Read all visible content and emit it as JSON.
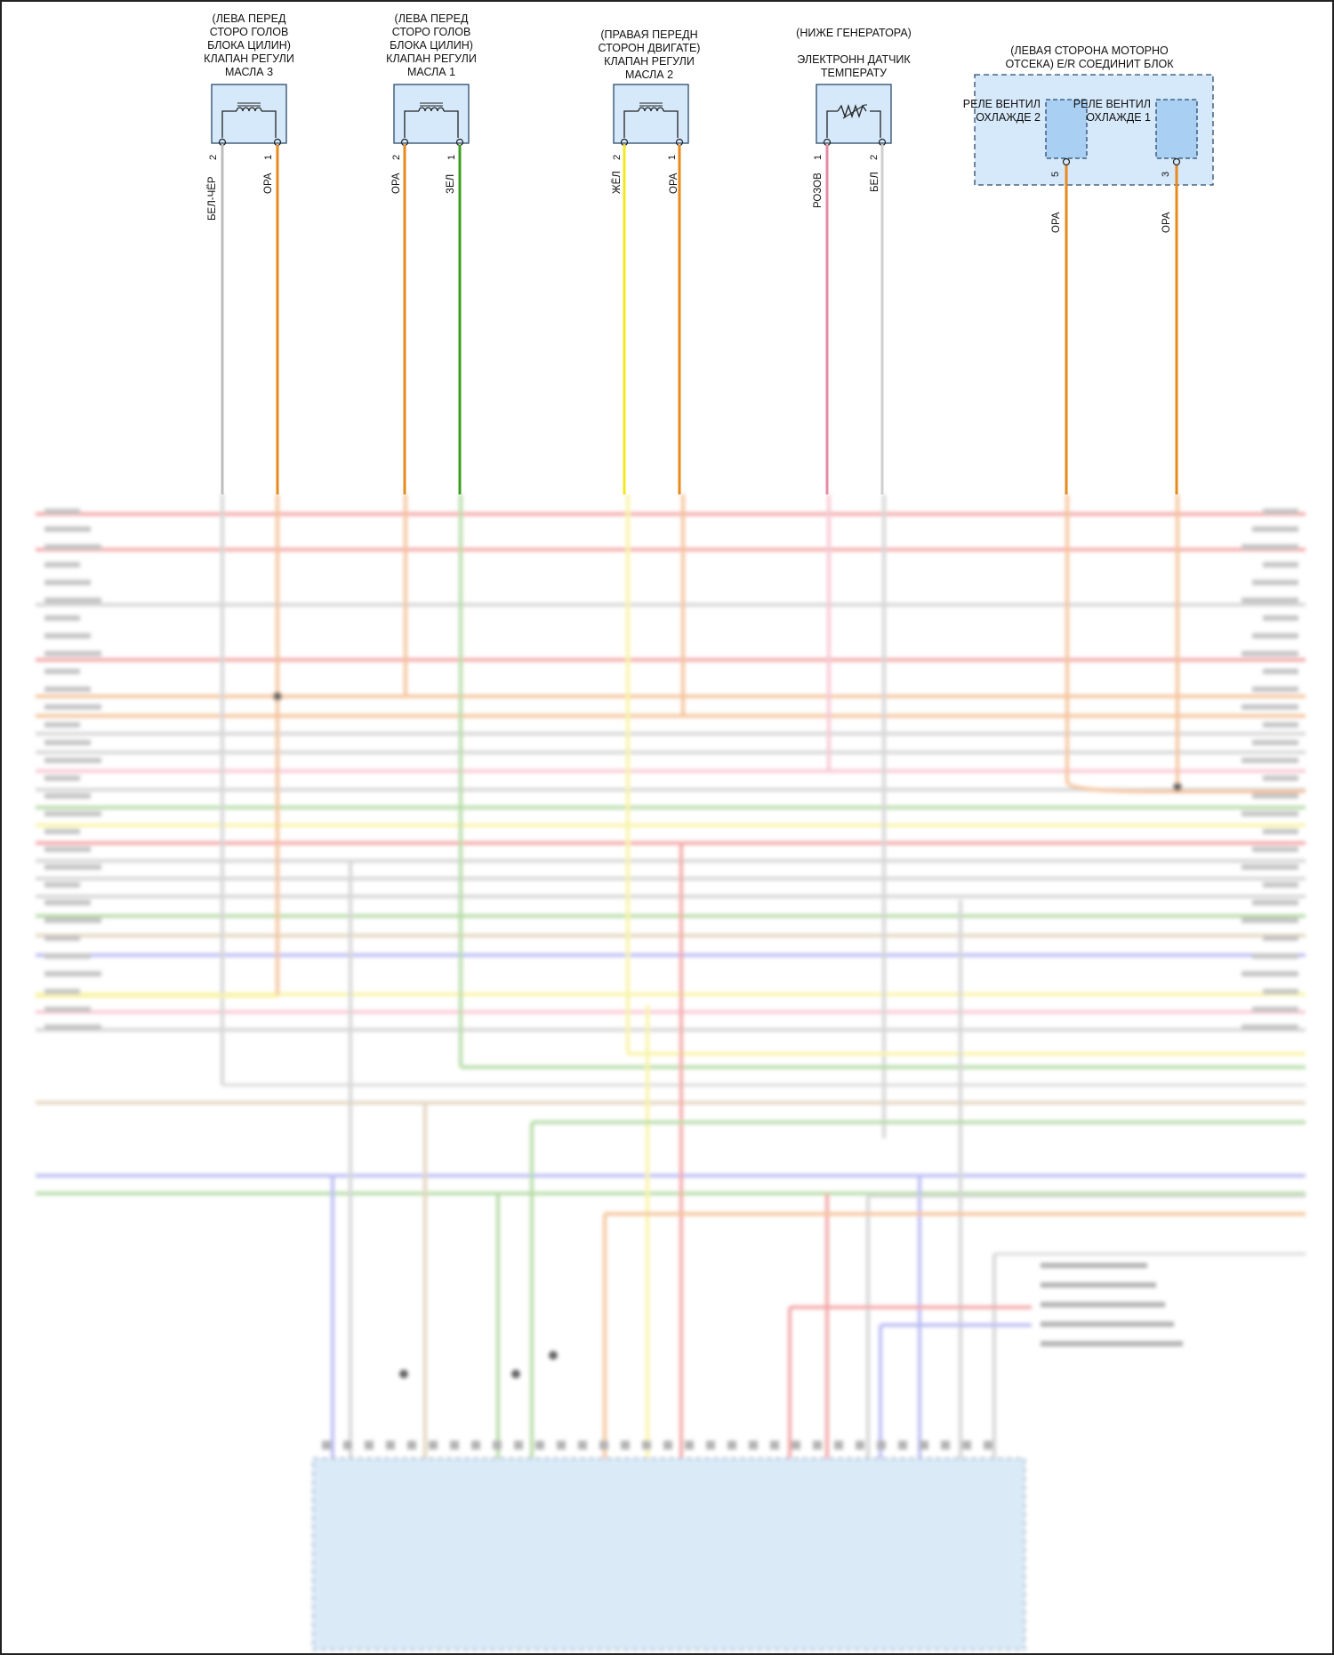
{
  "components": [
    {
      "id": "ocv3",
      "lines": [
        "(ЛЕВА ПЕРЕД",
        "СТОРО ГОЛОВ",
        "БЛОКА ЦИЛИН)",
        "КЛАПАН РЕГУЛИ",
        "МАСЛА 3"
      ]
    },
    {
      "id": "ocv1",
      "lines": [
        "(ЛЕВА ПЕРЕД",
        "СТОРО ГОЛОВ",
        "БЛОКА ЦИЛИН)",
        "КЛАПАН РЕГУЛИ",
        "МАСЛА 1"
      ]
    },
    {
      "id": "ocv2",
      "lines": [
        "(ПРАВАЯ ПЕРЕДН",
        "СТОРОН ДВИГАТЕ)",
        "КЛАПАН РЕГУЛИ",
        "МАСЛА 2"
      ]
    },
    {
      "id": "temp",
      "lines": [
        "(НИЖЕ ГЕНЕРАТОРА)",
        "",
        "ЭЛЕКТРОНН ДАТЧИК",
        "ТЕМПЕРАТУ"
      ]
    },
    {
      "id": "erbox",
      "lines": [
        "(ЛЕВАЯ СТОРОНА МОТОРНО",
        "ОТСЕКА) E/R СОЕДИНИТ БЛОК"
      ]
    }
  ],
  "relays": {
    "relay2": [
      "РЕЛЕ ВЕНТИЛ",
      "ОХЛАЖДЕ 2"
    ],
    "relay1": [
      "РЕЛЕ ВЕНТИЛ",
      "ОХЛАЖДЕ 1"
    ]
  },
  "wires": [
    {
      "id": "w1",
      "pin": "2",
      "label": "БЕЛ-ЧЁР",
      "color": "#bdbdbd"
    },
    {
      "id": "w2",
      "pin": "1",
      "label": "ОРА",
      "color": "#e8891a"
    },
    {
      "id": "w3",
      "pin": "2",
      "label": "ОРА",
      "color": "#e8891a"
    },
    {
      "id": "w4",
      "pin": "1",
      "label": "ЗЕЛ",
      "color": "#3aa11e"
    },
    {
      "id": "w5",
      "pin": "2",
      "label": "ЖЁЛ",
      "color": "#f2e81c"
    },
    {
      "id": "w6",
      "pin": "1",
      "label": "ОРА",
      "color": "#e8891a"
    },
    {
      "id": "w7",
      "pin": "1",
      "label": "РОЗОВ",
      "color": "#e88aa6"
    },
    {
      "id": "w8",
      "pin": "2",
      "label": "БЕЛ",
      "color": "#cfcfcf"
    },
    {
      "id": "w9",
      "pin": "5",
      "label": "ОРА",
      "color": "#e8891a"
    },
    {
      "id": "w10",
      "pin": "3",
      "label": "ОРА",
      "color": "#e8891a"
    }
  ],
  "colors": {
    "red": "#f08a8a",
    "orange": "#f2b07a",
    "gray": "#c8c8c8",
    "pink": "#f4b8c8",
    "green": "#9ed08a",
    "yellow": "#f7f08a",
    "tan": "#d9c7a8",
    "blue": "#a6a6f0",
    "ecm_fill": "#cfe3f5",
    "box_fill": "#d6e9fb",
    "box_stroke": "#2a4a6a"
  }
}
